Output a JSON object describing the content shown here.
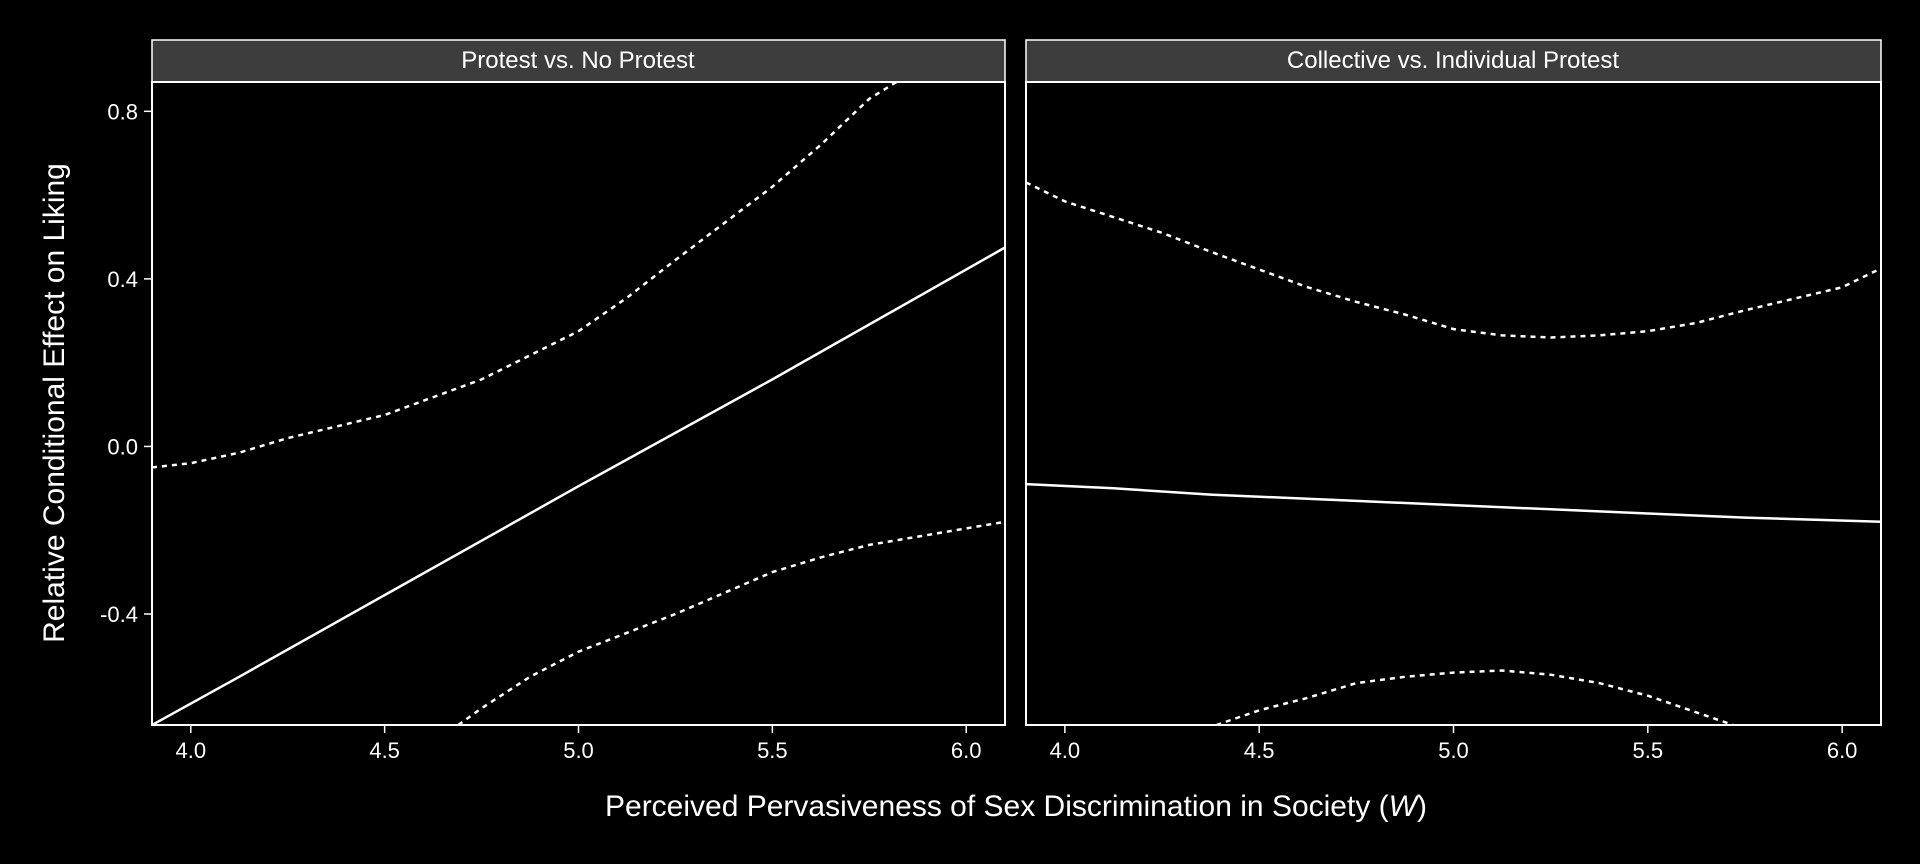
{
  "chart_data": {
    "type": "line",
    "xlabel_main": "Perceived Pervasiveness of Sex Discrimination in Society (",
    "xlabel_var": "W",
    "xlabel_close": ")",
    "ylabel": "Relative Conditional Effect on Liking",
    "xlim": [
      3.9,
      6.1
    ],
    "ylim": [
      -0.665,
      0.87
    ],
    "x_ticks": [
      4.0,
      4.5,
      5.0,
      5.5,
      6.0
    ],
    "x_tick_labels": [
      "4.0",
      "4.5",
      "5.0",
      "5.5",
      "6.0"
    ],
    "y_ticks": [
      0.8,
      0.4,
      0.0,
      -0.4
    ],
    "y_tick_labels": [
      "0.8",
      "0.4",
      "0.0",
      "-0.4"
    ],
    "panels": [
      {
        "title": "Protest vs. No Protest",
        "series": [
          {
            "name": "upper CI",
            "style": "dashed",
            "points": [
              [
                3.9,
                -0.05
              ],
              [
                4.0,
                -0.04
              ],
              [
                4.125,
                -0.015
              ],
              [
                4.25,
                0.02
              ],
              [
                4.5,
                0.075
              ],
              [
                4.75,
                0.16
              ],
              [
                5.0,
                0.275
              ],
              [
                5.125,
                0.355
              ],
              [
                5.25,
                0.445
              ],
              [
                5.5,
                0.62
              ],
              [
                5.625,
                0.72
              ],
              [
                5.75,
                0.83
              ],
              [
                5.82,
                0.87
              ]
            ]
          },
          {
            "name": "estimate",
            "style": "solid",
            "points": [
              [
                3.9,
                -0.665
              ],
              [
                4.125,
                -0.55
              ],
              [
                4.5,
                -0.355
              ],
              [
                4.75,
                -0.225
              ],
              [
                5.0,
                -0.095
              ],
              [
                5.5,
                0.16
              ],
              [
                6.1,
                0.475
              ]
            ]
          },
          {
            "name": "lower CI",
            "style": "dashed",
            "points": [
              [
                4.69,
                -0.665
              ],
              [
                4.75,
                -0.625
              ],
              [
                4.875,
                -0.55
              ],
              [
                5.0,
                -0.49
              ],
              [
                5.25,
                -0.4
              ],
              [
                5.5,
                -0.3
              ],
              [
                5.625,
                -0.265
              ],
              [
                5.75,
                -0.235
              ],
              [
                6.1,
                -0.18
              ]
            ]
          }
        ]
      },
      {
        "title": "Collective vs. Individual Protest",
        "series": [
          {
            "name": "upper CI",
            "style": "dashed",
            "points": [
              [
                3.9,
                0.63
              ],
              [
                4.0,
                0.585
              ],
              [
                4.25,
                0.51
              ],
              [
                4.375,
                0.465
              ],
              [
                4.625,
                0.38
              ],
              [
                4.75,
                0.345
              ],
              [
                4.875,
                0.315
              ],
              [
                5.0,
                0.28
              ],
              [
                5.125,
                0.265
              ],
              [
                5.25,
                0.26
              ],
              [
                5.375,
                0.265
              ],
              [
                5.5,
                0.275
              ],
              [
                5.625,
                0.295
              ],
              [
                5.75,
                0.325
              ],
              [
                6.0,
                0.38
              ],
              [
                6.1,
                0.425
              ]
            ]
          },
          {
            "name": "estimate",
            "style": "solid",
            "points": [
              [
                3.9,
                -0.09
              ],
              [
                4.125,
                -0.1
              ],
              [
                4.375,
                -0.115
              ],
              [
                4.75,
                -0.13
              ],
              [
                5.0,
                -0.14
              ],
              [
                5.25,
                -0.15
              ],
              [
                5.5,
                -0.16
              ],
              [
                5.75,
                -0.17
              ],
              [
                6.1,
                -0.18
              ]
            ]
          },
          {
            "name": "lower CI",
            "style": "dashed",
            "points": [
              [
                4.39,
                -0.665
              ],
              [
                4.5,
                -0.63
              ],
              [
                4.625,
                -0.6
              ],
              [
                4.75,
                -0.565
              ],
              [
                4.875,
                -0.55
              ],
              [
                5.0,
                -0.54
              ],
              [
                5.125,
                -0.535
              ],
              [
                5.25,
                -0.545
              ],
              [
                5.375,
                -0.565
              ],
              [
                5.5,
                -0.595
              ],
              [
                5.625,
                -0.635
              ],
              [
                5.72,
                -0.665
              ]
            ]
          }
        ]
      }
    ]
  }
}
